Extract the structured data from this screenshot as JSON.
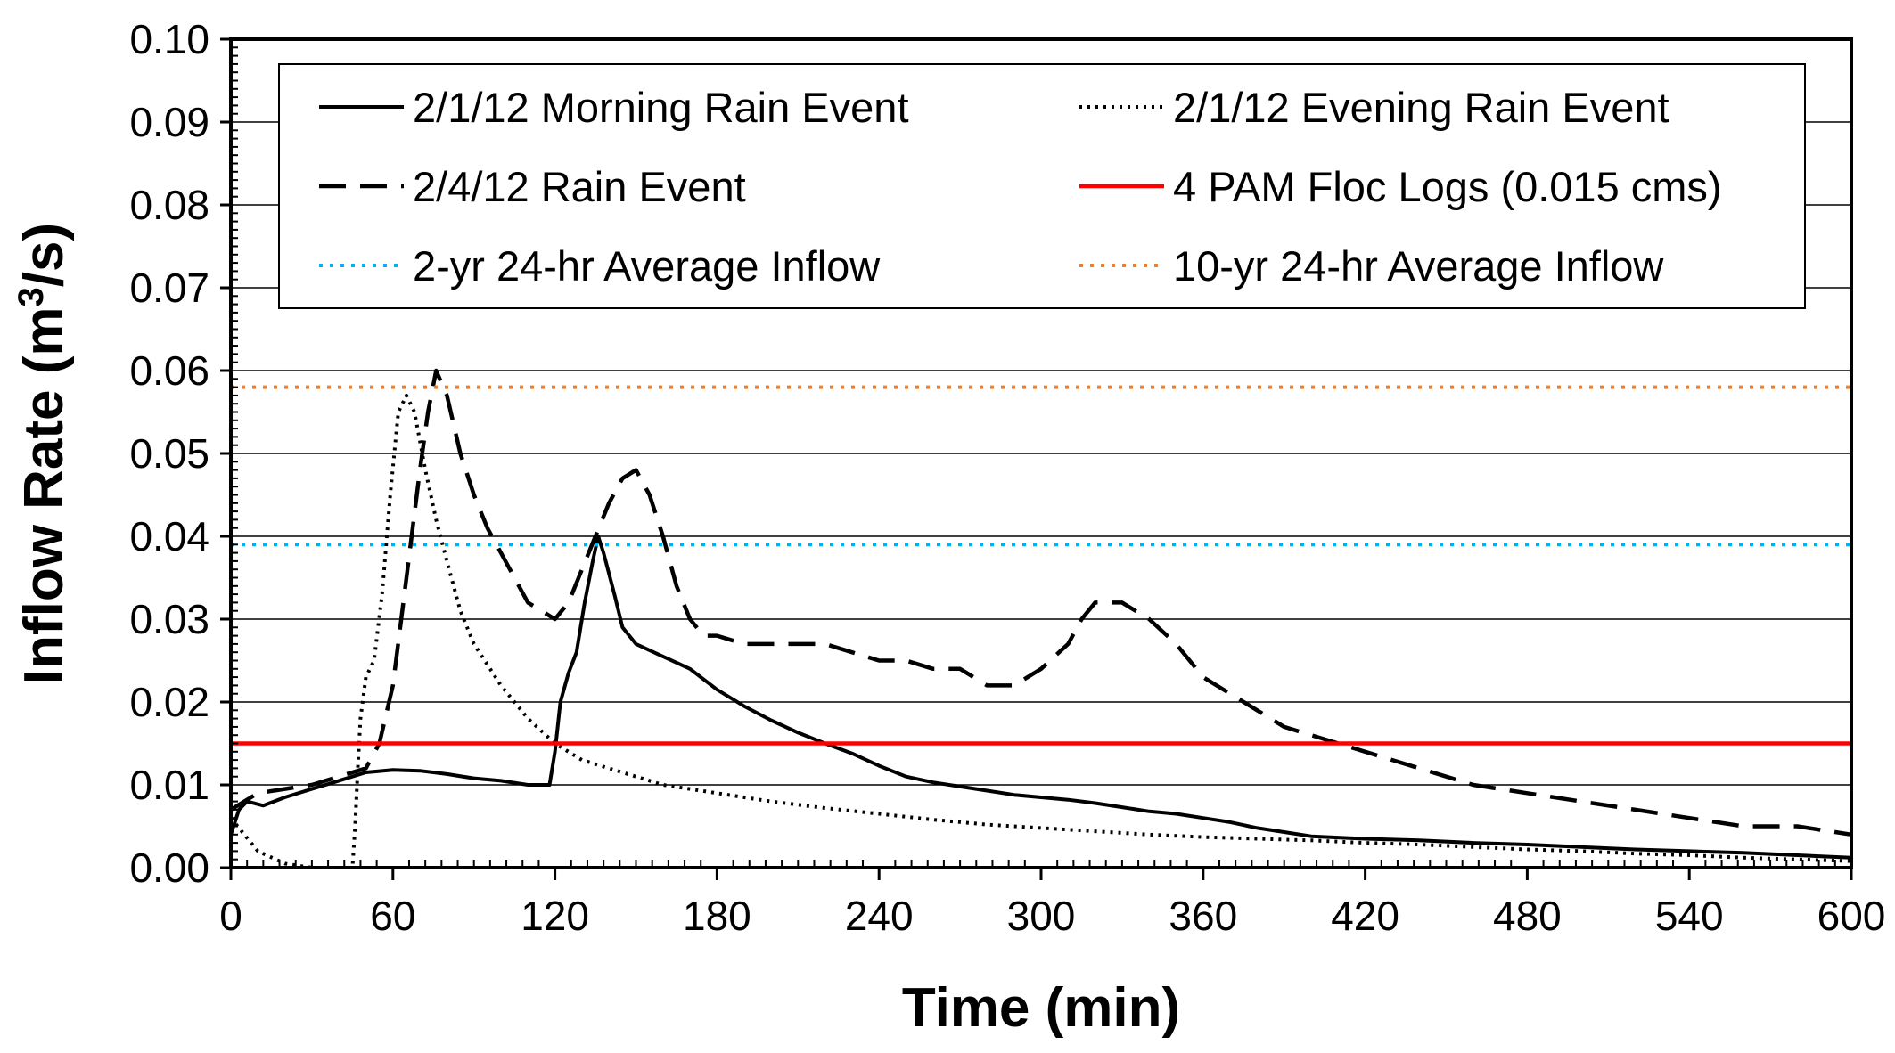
{
  "chart_data": {
    "type": "line",
    "xlabel": "Time (min)",
    "ylabel_main": "Inflow Rate (m",
    "ylabel_sup": "3",
    "ylabel_tail": "/s)",
    "xlim": [
      0,
      600
    ],
    "ylim": [
      0,
      0.1
    ],
    "xticks": [
      0,
      60,
      120,
      180,
      240,
      300,
      360,
      420,
      480,
      540,
      600
    ],
    "yticks": [
      0.0,
      0.01,
      0.02,
      0.03,
      0.04,
      0.05,
      0.06,
      0.07,
      0.08,
      0.09,
      0.1
    ],
    "ytick_labels": [
      "0.00",
      "0.01",
      "0.02",
      "0.03",
      "0.04",
      "0.05",
      "0.06",
      "0.07",
      "0.08",
      "0.09",
      "0.10"
    ],
    "grid": "horizontal",
    "legend_position": "top",
    "series": [
      {
        "name": "2/1/12 Morning Rain Event",
        "style": "solid",
        "color": "#000000",
        "x": [
          0,
          3,
          6,
          12,
          20,
          30,
          40,
          50,
          60,
          70,
          80,
          90,
          100,
          110,
          118,
          120,
          122,
          125,
          128,
          131,
          134,
          136,
          138,
          142,
          145,
          150,
          160,
          170,
          180,
          190,
          200,
          210,
          220,
          230,
          240,
          250,
          260,
          270,
          280,
          290,
          300,
          310,
          320,
          330,
          340,
          350,
          360,
          370,
          380,
          390,
          400,
          420,
          440,
          460,
          480,
          500,
          520,
          540,
          560,
          580,
          600
        ],
        "y": [
          0.004,
          0.007,
          0.008,
          0.0075,
          0.0085,
          0.0095,
          0.0105,
          0.0115,
          0.0118,
          0.0117,
          0.0113,
          0.0108,
          0.0105,
          0.01,
          0.01,
          0.014,
          0.02,
          0.0235,
          0.026,
          0.032,
          0.037,
          0.04,
          0.038,
          0.033,
          0.029,
          0.027,
          0.0255,
          0.024,
          0.0215,
          0.0195,
          0.0178,
          0.0163,
          0.015,
          0.0138,
          0.0123,
          0.011,
          0.0103,
          0.0098,
          0.0093,
          0.0088,
          0.0085,
          0.0082,
          0.0078,
          0.0073,
          0.0068,
          0.0065,
          0.006,
          0.0055,
          0.0048,
          0.0043,
          0.0038,
          0.0035,
          0.0033,
          0.003,
          0.0028,
          0.0025,
          0.0022,
          0.002,
          0.0018,
          0.0015,
          0.0012
        ]
      },
      {
        "name": "2/1/12 Evening Rain Event",
        "style": "dotted",
        "color": "#000000",
        "x": [
          0,
          5,
          10,
          20,
          30,
          40,
          45,
          46,
          47,
          48,
          50,
          53,
          56,
          59,
          62,
          65,
          68,
          72,
          76,
          80,
          85,
          90,
          100,
          110,
          120,
          130,
          140,
          150,
          160,
          180,
          200,
          220,
          240,
          260,
          280,
          300,
          320,
          340,
          360,
          380,
          400,
          420,
          440,
          460,
          480,
          500,
          520,
          540,
          560,
          580,
          600
        ],
        "y": [
          0.006,
          0.004,
          0.002,
          0.0005,
          0.0,
          0.0,
          0.0,
          0.005,
          0.012,
          0.018,
          0.023,
          0.025,
          0.033,
          0.045,
          0.055,
          0.057,
          0.055,
          0.048,
          0.042,
          0.037,
          0.031,
          0.027,
          0.022,
          0.018,
          0.015,
          0.013,
          0.012,
          0.011,
          0.01,
          0.009,
          0.008,
          0.0072,
          0.0065,
          0.0058,
          0.0052,
          0.0048,
          0.0044,
          0.004,
          0.0037,
          0.0035,
          0.0033,
          0.003,
          0.0028,
          0.0025,
          0.0022,
          0.002,
          0.0017,
          0.0015,
          0.0012,
          0.001,
          0.0008
        ]
      },
      {
        "name": "2/4/12 Rain Event",
        "style": "dashed",
        "color": "#000000",
        "x": [
          0,
          5,
          10,
          20,
          30,
          40,
          50,
          55,
          60,
          65,
          70,
          73,
          76,
          80,
          85,
          90,
          95,
          100,
          105,
          110,
          115,
          120,
          125,
          130,
          135,
          140,
          145,
          150,
          155,
          160,
          165,
          170,
          175,
          180,
          190,
          200,
          210,
          220,
          230,
          240,
          250,
          260,
          270,
          280,
          290,
          300,
          310,
          315,
          320,
          325,
          330,
          340,
          350,
          360,
          370,
          380,
          390,
          400,
          420,
          440,
          460,
          480,
          500,
          520,
          540,
          560,
          580,
          600
        ],
        "y": [
          0.007,
          0.008,
          0.009,
          0.0095,
          0.01,
          0.011,
          0.012,
          0.015,
          0.022,
          0.035,
          0.048,
          0.055,
          0.06,
          0.057,
          0.05,
          0.045,
          0.041,
          0.038,
          0.035,
          0.032,
          0.031,
          0.03,
          0.032,
          0.036,
          0.04,
          0.044,
          0.047,
          0.048,
          0.045,
          0.04,
          0.034,
          0.03,
          0.028,
          0.028,
          0.027,
          0.027,
          0.027,
          0.027,
          0.026,
          0.025,
          0.025,
          0.024,
          0.024,
          0.022,
          0.022,
          0.024,
          0.027,
          0.03,
          0.032,
          0.032,
          0.032,
          0.03,
          0.027,
          0.023,
          0.021,
          0.019,
          0.017,
          0.016,
          0.014,
          0.012,
          0.01,
          0.009,
          0.008,
          0.007,
          0.006,
          0.005,
          0.005,
          0.004
        ]
      },
      {
        "name": "4 PAM Floc Logs (0.015 cms)",
        "style": "solid",
        "color": "#ff0000",
        "x": [
          0,
          600
        ],
        "y": [
          0.015,
          0.015
        ]
      },
      {
        "name": "2-yr 24-hr Average Inflow",
        "style": "dotted",
        "color": "#00b0f0",
        "x": [
          0,
          600
        ],
        "y": [
          0.039,
          0.039
        ]
      },
      {
        "name": "10-yr 24-hr Average Inflow",
        "style": "dotted",
        "color": "#ed7d31",
        "x": [
          0,
          600
        ],
        "y": [
          0.058,
          0.058
        ]
      }
    ],
    "legend_order": [
      0,
      1,
      2,
      3,
      4,
      5
    ]
  }
}
